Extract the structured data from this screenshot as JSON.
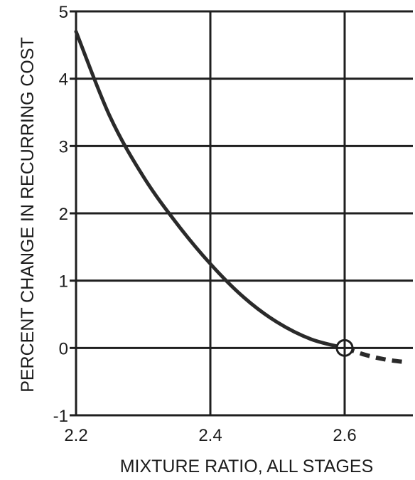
{
  "chart_data": {
    "type": "line",
    "title": "",
    "xlabel": "MIXTURE RATIO, ALL STAGES",
    "ylabel": "PERCENT CHANGE IN RECURRING COST",
    "xlim": [
      2.2,
      2.7
    ],
    "ylim": [
      -1,
      5
    ],
    "grid": true,
    "x_ticks": [
      2.2,
      2.4,
      2.6
    ],
    "x_tick_labels": [
      "2.2",
      "2.4",
      "2.6"
    ],
    "y_ticks": [
      -1,
      0,
      1,
      2,
      3,
      4,
      5
    ],
    "y_tick_labels": [
      "-1",
      "0",
      "1",
      "2",
      "3",
      "4",
      "5"
    ],
    "series": [
      {
        "style": "solid",
        "x": [
          2.2,
          2.25,
          2.3,
          2.35,
          2.4,
          2.45,
          2.5,
          2.55,
          2.6
        ],
        "y": [
          4.7,
          3.45,
          2.55,
          1.85,
          1.25,
          0.75,
          0.38,
          0.13,
          0.0
        ]
      },
      {
        "style": "dashed",
        "x": [
          2.6,
          2.63,
          2.66,
          2.69
        ],
        "y": [
          0.0,
          -0.1,
          -0.17,
          -0.21
        ]
      }
    ],
    "annotations": [
      {
        "type": "circled-point",
        "x": 2.6,
        "y": 0
      }
    ]
  }
}
